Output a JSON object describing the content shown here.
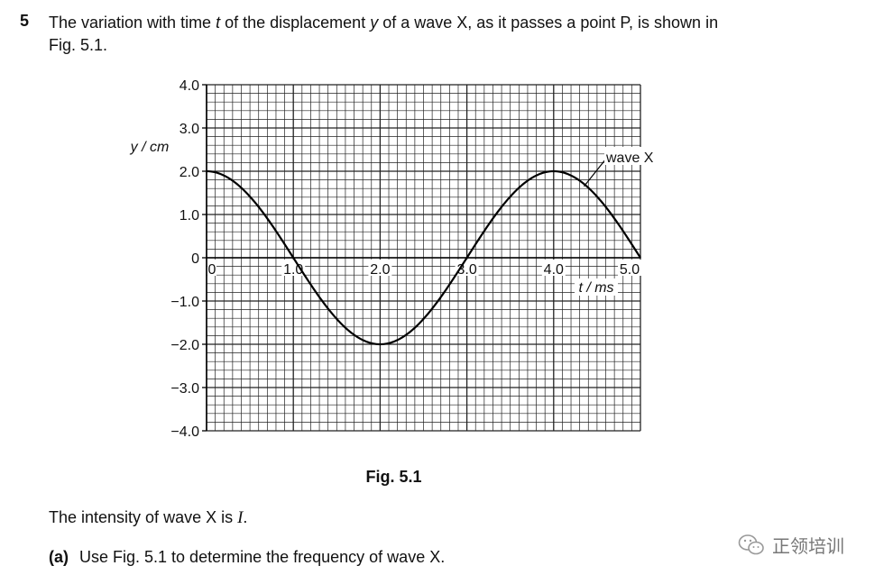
{
  "question": {
    "number": "5",
    "text_before_t": "The variation with time ",
    "t_symbol": "t",
    "text_before_y": " of the displacement ",
    "y_symbol": "y",
    "text_after_y": " of a wave X, as it passes a point P, is shown in",
    "text_line2": "Fig. 5.1."
  },
  "figure_caption": "Fig. 5.1",
  "intensity": {
    "text": "The intensity of wave X is ",
    "symbol": "I",
    "end": "."
  },
  "part_a": {
    "label": "(a)",
    "text": "Use Fig. 5.1 to determine the frequency of wave X."
  },
  "watermark": {
    "text": "正领培训",
    "icon": "wechat-icon"
  },
  "chart_data": {
    "type": "line",
    "xlabel": "t / ms",
    "ylabel": "y / cm",
    "xlim": [
      0,
      5.0
    ],
    "ylim": [
      -4.0,
      4.0
    ],
    "x_ticks": [
      "0",
      "1.0",
      "2.0",
      "3.0",
      "4.0",
      "5.0"
    ],
    "y_ticks": [
      "4.0",
      "3.0",
      "2.0",
      "1.0",
      "0",
      "−1.0",
      "−2.0",
      "−3.0",
      "−4.0"
    ],
    "grid": true,
    "series": [
      {
        "name": "wave X",
        "amplitude": 2.0,
        "period": 4.0,
        "x": [
          0,
          0.25,
          0.5,
          0.75,
          1.0,
          1.25,
          1.5,
          1.75,
          2.0,
          2.25,
          2.5,
          2.75,
          3.0,
          3.25,
          3.5,
          3.75,
          4.0,
          4.25,
          4.5,
          4.75,
          5.0
        ],
        "y": [
          2.0,
          1.85,
          1.41,
          0.77,
          0,
          -0.77,
          -1.41,
          -1.85,
          -2.0,
          -1.85,
          -1.41,
          -0.77,
          0,
          0.77,
          1.41,
          1.85,
          2.0,
          1.85,
          1.41,
          0.77,
          0
        ]
      }
    ],
    "annotations": [
      "wave X"
    ]
  }
}
